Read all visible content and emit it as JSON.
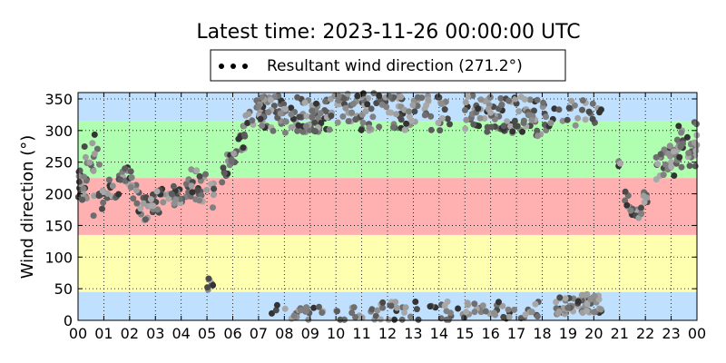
{
  "chart_data": {
    "type": "scatter",
    "title": "Latest time: 2023-11-26 00:00:00 UTC",
    "xlabel": "",
    "ylabel": "Wind direction (°)",
    "xlim": [
      0,
      24
    ],
    "ylim": [
      0,
      360
    ],
    "x_ticks": [
      "00",
      "01",
      "02",
      "03",
      "04",
      "05",
      "06",
      "07",
      "08",
      "09",
      "10",
      "11",
      "12",
      "13",
      "14",
      "15",
      "16",
      "17",
      "18",
      "19",
      "20",
      "21",
      "22",
      "23",
      "00"
    ],
    "y_ticks": [
      0,
      50,
      100,
      150,
      200,
      250,
      300,
      350
    ],
    "grid": true,
    "legend": {
      "placement": "top-center",
      "entries": [
        "Resultant wind direction (271.2°)"
      ]
    },
    "bands": [
      {
        "from": 0,
        "to": 45,
        "color": "#c0e0ff"
      },
      {
        "from": 45,
        "to": 135,
        "color": "#ffffb0"
      },
      {
        "from": 135,
        "to": 225,
        "color": "#ffb0b0"
      },
      {
        "from": 225,
        "to": 315,
        "color": "#b0ffb0"
      },
      {
        "from": 315,
        "to": 360,
        "color": "#c0e0ff"
      }
    ],
    "series": [
      {
        "name": "Resultant wind direction (271.2°)",
        "segments": [
          {
            "x0": 0.0,
            "x1": 0.35,
            "y0": 220,
            "y1": 200,
            "spread": 25,
            "n": 22
          },
          {
            "x0": 0.2,
            "x1": 0.9,
            "y0": 260,
            "y1": 270,
            "spread": 35,
            "n": 14
          },
          {
            "x0": 0.6,
            "x1": 1.4,
            "y0": 180,
            "y1": 210,
            "spread": 20,
            "n": 18
          },
          {
            "x0": 1.4,
            "x1": 2.0,
            "y0": 205,
            "y1": 235,
            "spread": 18,
            "n": 16
          },
          {
            "x0": 2.0,
            "x1": 2.5,
            "y0": 225,
            "y1": 175,
            "spread": 20,
            "n": 14
          },
          {
            "x0": 2.5,
            "x1": 3.5,
            "y0": 175,
            "y1": 195,
            "spread": 20,
            "n": 28
          },
          {
            "x0": 3.5,
            "x1": 4.3,
            "y0": 190,
            "y1": 210,
            "spread": 18,
            "n": 24
          },
          {
            "x0": 4.3,
            "x1": 5.3,
            "y0": 220,
            "y1": 200,
            "spread": 25,
            "n": 26
          },
          {
            "x0": 5.5,
            "x1": 5.9,
            "y0": 230,
            "y1": 250,
            "spread": 20,
            "n": 10
          },
          {
            "x0": 5.9,
            "x1": 6.5,
            "y0": 250,
            "y1": 290,
            "spread": 25,
            "n": 18
          },
          {
            "x0": 6.5,
            "x1": 7.2,
            "y0": 320,
            "y1": 335,
            "spread": 20,
            "n": 20
          },
          {
            "x0": 7.0,
            "x1": 11.5,
            "y0": 325,
            "y1": 330,
            "spread": 30,
            "n": 150
          },
          {
            "x0": 11.5,
            "x1": 14.5,
            "y0": 330,
            "y1": 325,
            "spread": 28,
            "n": 70
          },
          {
            "x0": 15.0,
            "x1": 18.2,
            "y0": 330,
            "y1": 320,
            "spread": 30,
            "n": 100
          },
          {
            "x0": 18.2,
            "x1": 20.3,
            "y0": 325,
            "y1": 330,
            "spread": 22,
            "n": 26
          },
          {
            "x0": 7.5,
            "x1": 10.0,
            "y0": 12,
            "y1": 12,
            "spread": 12,
            "n": 24
          },
          {
            "x0": 10.0,
            "x1": 18.0,
            "y0": 14,
            "y1": 14,
            "spread": 16,
            "n": 85
          },
          {
            "x0": 18.5,
            "x1": 20.3,
            "y0": 22,
            "y1": 28,
            "spread": 16,
            "n": 60
          },
          {
            "x0": 4.9,
            "x1": 5.3,
            "y0": 75,
            "y1": 45,
            "spread": 30,
            "n": 6
          },
          {
            "x0": 20.8,
            "x1": 21.2,
            "y0": 245,
            "y1": 245,
            "spread": 8,
            "n": 3
          },
          {
            "x0": 21.2,
            "x1": 21.7,
            "y0": 195,
            "y1": 165,
            "spread": 12,
            "n": 14
          },
          {
            "x0": 21.7,
            "x1": 22.1,
            "y0": 160,
            "y1": 205,
            "spread": 15,
            "n": 10
          },
          {
            "x0": 22.4,
            "x1": 23.0,
            "y0": 240,
            "y1": 260,
            "spread": 22,
            "n": 22
          },
          {
            "x0": 23.0,
            "x1": 24.0,
            "y0": 265,
            "y1": 285,
            "spread": 40,
            "n": 40
          }
        ]
      }
    ]
  }
}
